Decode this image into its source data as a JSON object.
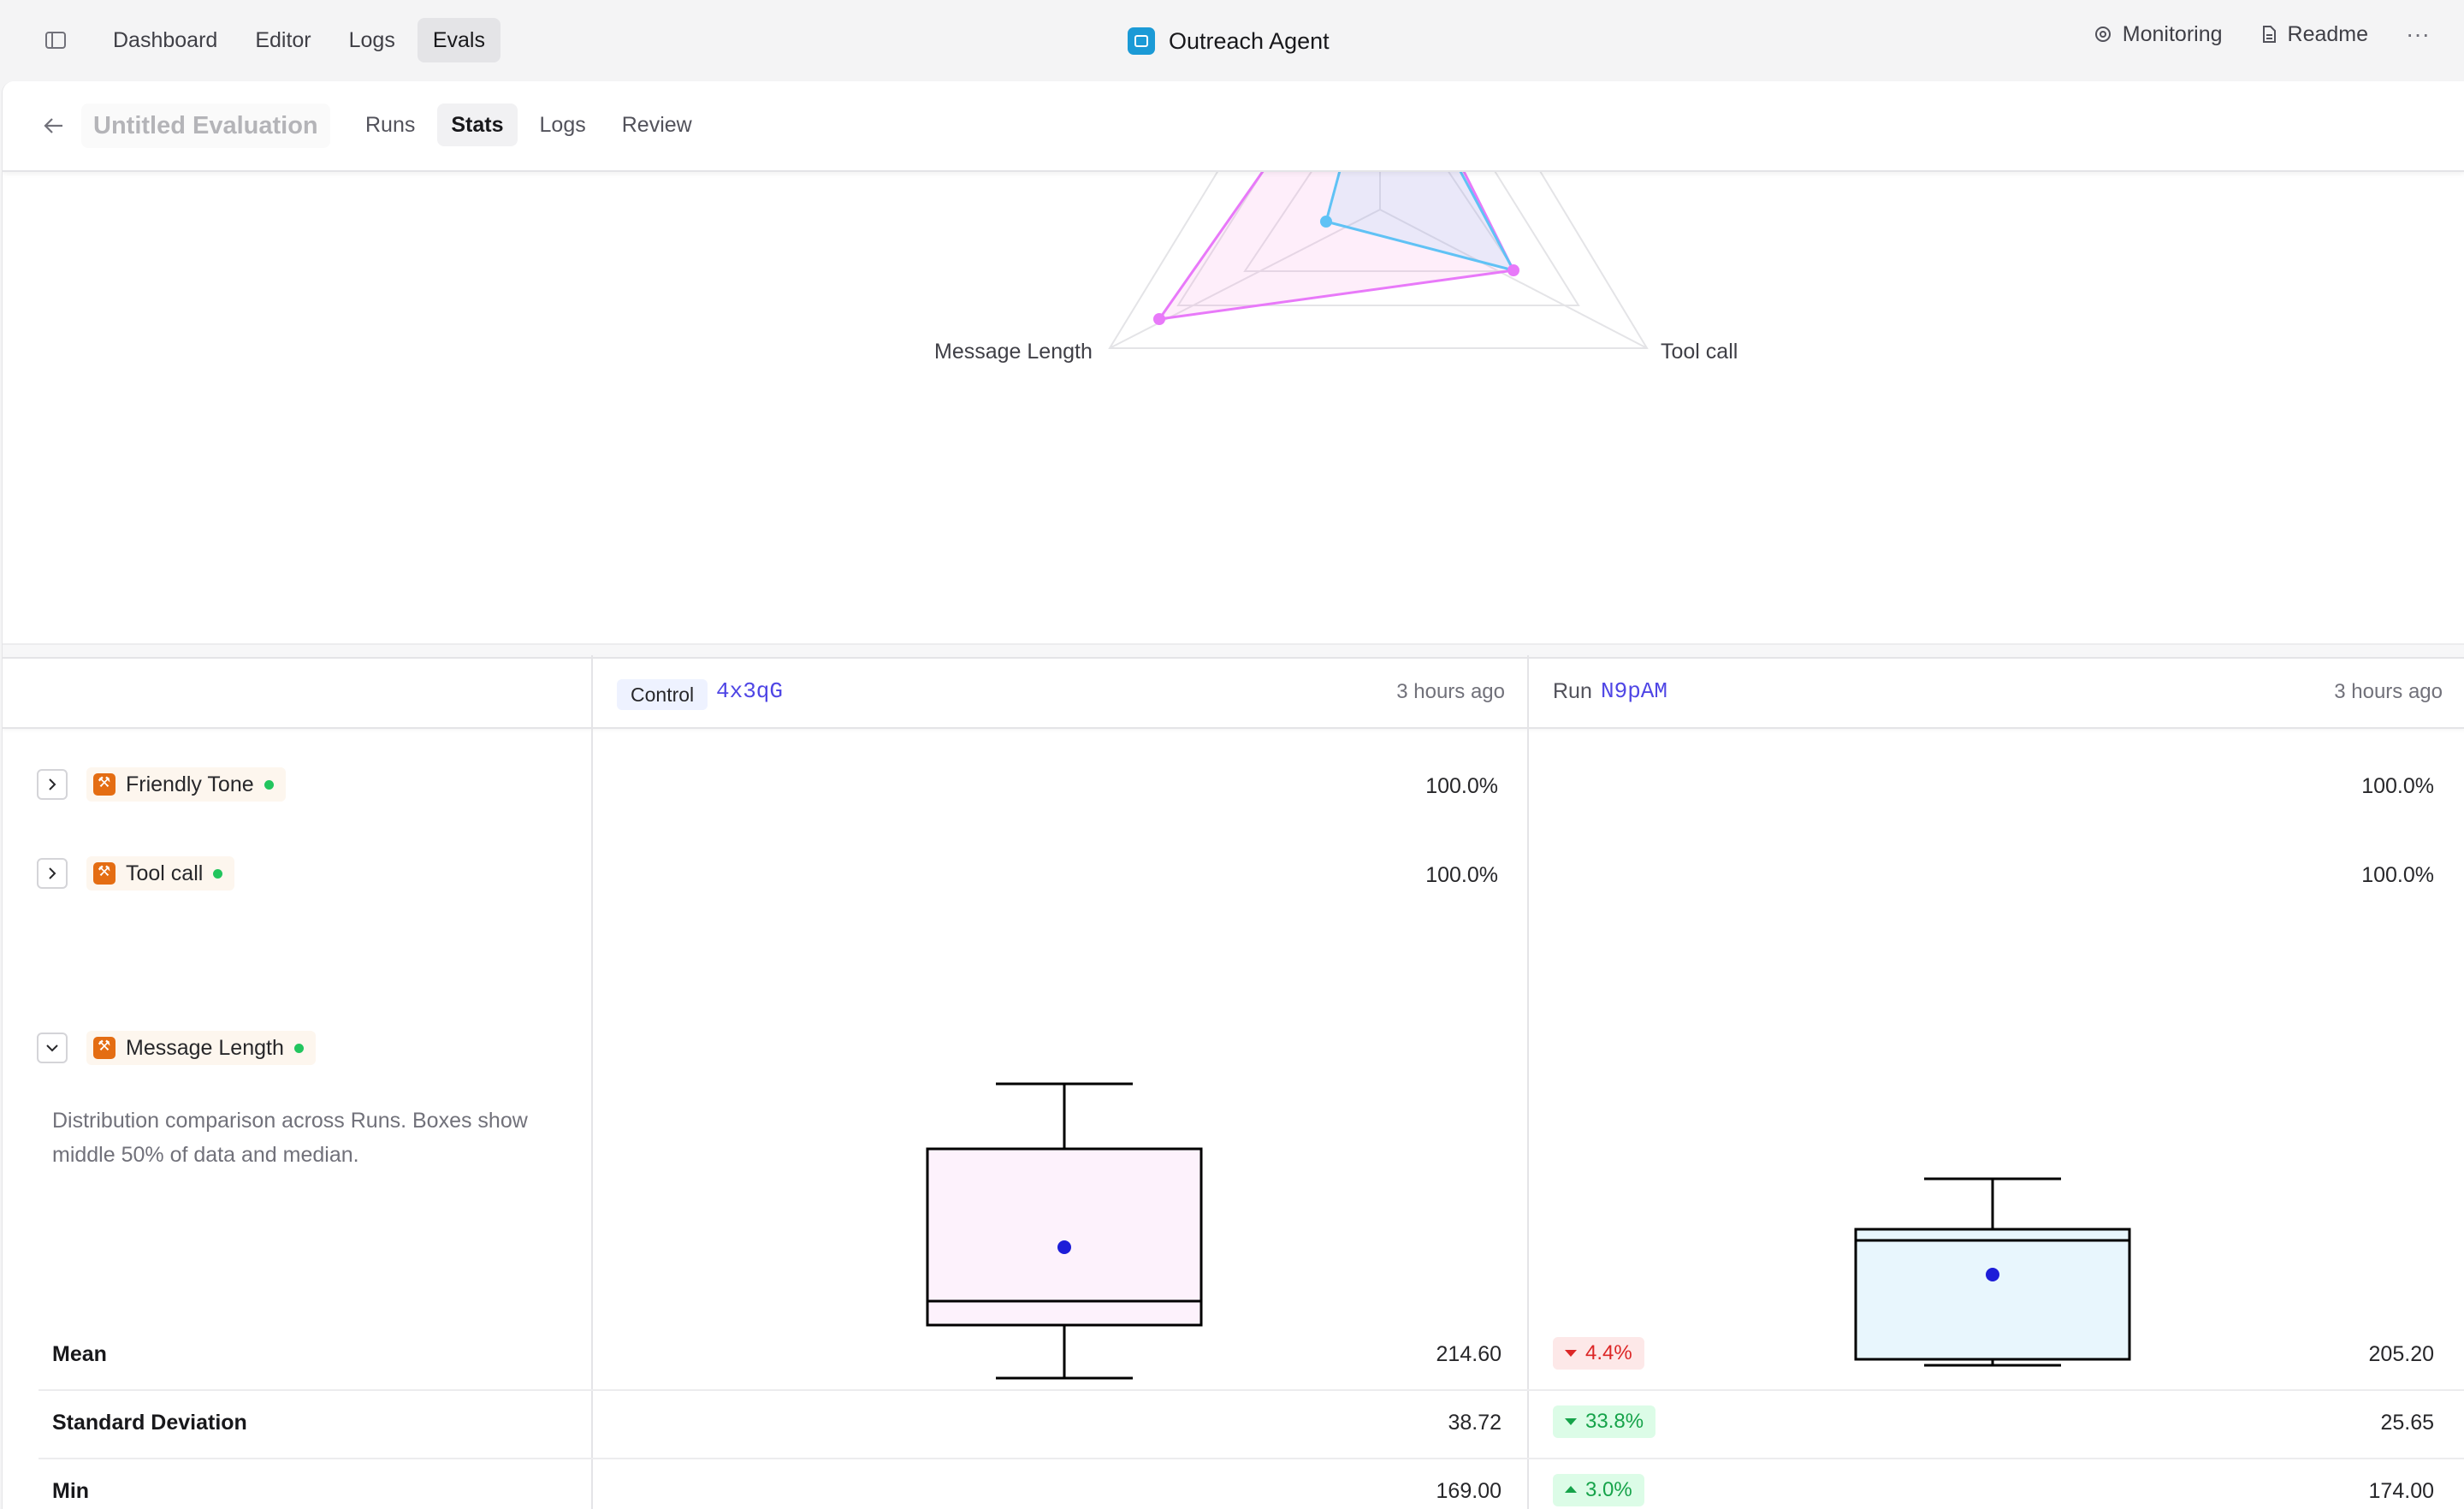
{
  "nav": {
    "items": [
      {
        "label": "Dashboard",
        "active": false
      },
      {
        "label": "Editor",
        "active": false
      },
      {
        "label": "Logs",
        "active": false
      },
      {
        "label": "Evals",
        "active": true
      }
    ],
    "app_title": "Outreach Agent",
    "monitoring": "Monitoring",
    "readme": "Readme",
    "more": "···"
  },
  "subheader": {
    "title": "Untitled Evaluation",
    "tabs": [
      {
        "label": "Runs",
        "active": false
      },
      {
        "label": "Stats",
        "active": true
      },
      {
        "label": "Logs",
        "active": false
      },
      {
        "label": "Review",
        "active": false
      }
    ]
  },
  "radar": {
    "axis_labels": [
      "Message Length",
      "Tool call"
    ]
  },
  "table": {
    "control": {
      "badge": "Control",
      "id": "4x3qG",
      "time": "3 hours ago",
      "color": "#f472d8"
    },
    "run": {
      "label": "Run",
      "id": "N9pAM",
      "time": "3 hours ago",
      "color": "#38bdf8"
    },
    "metrics": [
      {
        "name": "Friendly Tone",
        "control": "100.0%",
        "run": "100.0%",
        "expanded": false
      },
      {
        "name": "Tool call",
        "control": "100.0%",
        "run": "100.0%",
        "expanded": false
      },
      {
        "name": "Message Length",
        "expanded": true
      }
    ],
    "description": "Distribution comparison across Runs. Boxes show middle 50% of data and median.",
    "stats": [
      {
        "label": "Mean",
        "control": "214.60",
        "delta": "4.4%",
        "direction": "down",
        "tone": "bad",
        "run": "205.20"
      },
      {
        "label": "Standard Deviation",
        "control": "38.72",
        "delta": "33.8%",
        "direction": "down",
        "tone": "good",
        "run": "25.65"
      },
      {
        "label": "Min",
        "control": "169.00",
        "delta": "3.0%",
        "direction": "up",
        "tone": "good",
        "run": "174.00"
      }
    ]
  }
}
